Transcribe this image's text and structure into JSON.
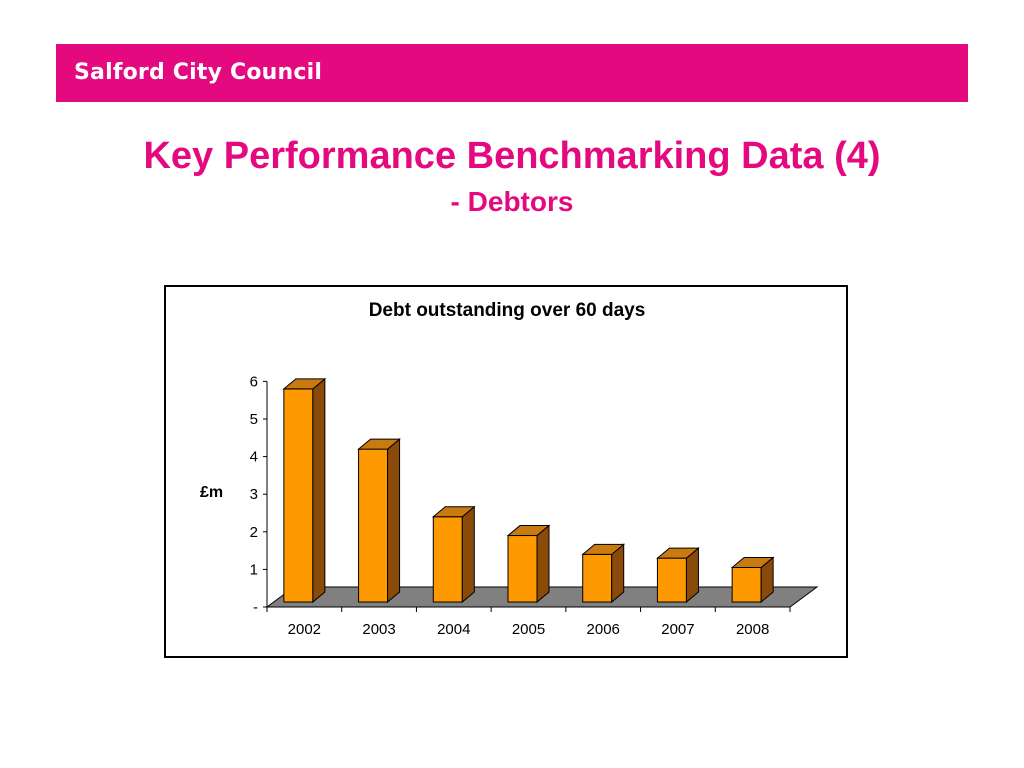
{
  "header": {
    "org_name": "Salford City Council",
    "brand_color": "#e5097f"
  },
  "slide": {
    "title": "Key Performance Benchmarking Data (4)",
    "subtitle": "- Debtors",
    "title_color": "#e5097f"
  },
  "chart_data": {
    "type": "bar",
    "title": "Debt outstanding over 60 days",
    "xlabel": "",
    "ylabel": "£m",
    "categories": [
      "2002",
      "2003",
      "2004",
      "2005",
      "2006",
      "2007",
      "2008"
    ],
    "values": [
      5.8,
      4.2,
      2.4,
      1.9,
      1.4,
      1.3,
      1.05
    ],
    "ylim": [
      0,
      6
    ],
    "yticks": [
      "-",
      "1",
      "2",
      "3",
      "4",
      "5",
      "6"
    ],
    "bar_color": "#ff9900",
    "bar_side_color": "#8a4a0a",
    "bar_top_color": "#c97a10",
    "floor_color": "#808080",
    "grid": false,
    "legend": "none",
    "style": "3d"
  }
}
